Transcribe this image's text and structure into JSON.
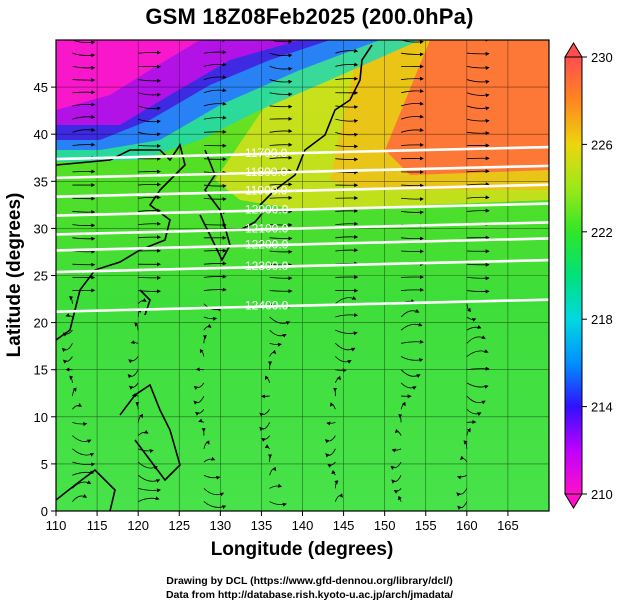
{
  "title": "GSM 18Z08Feb2025 (200.0hPa)",
  "credits": {
    "line1": "Drawing by DCL (https://www.gfd-dennou.org/library/dcl/)",
    "line2": "Data from http://database.rish.kyoto-u.ac.jp/arch/jmadata/"
  },
  "chart_data": {
    "type": "heatmap",
    "title": "GSM 18Z08Feb2025 (200.0hPa)",
    "xlabel": "Longitude (degrees)",
    "ylabel": "Latitude  (degrees)",
    "xlim": [
      110,
      170
    ],
    "ylim": [
      0,
      50
    ],
    "xticks": [
      110,
      115,
      120,
      125,
      130,
      135,
      140,
      145,
      150,
      155,
      160,
      165
    ],
    "yticks": [
      0,
      5,
      10,
      15,
      20,
      25,
      30,
      35,
      40,
      45
    ],
    "colorbar": {
      "min": 210,
      "max": 230,
      "ticks": [
        210,
        214,
        218,
        222,
        226,
        230
      ]
    },
    "contours": [
      {
        "label": "11700.0",
        "lat": 38.0
      },
      {
        "label": "11800.0",
        "lat": 36.0
      },
      {
        "label": "11900.0",
        "lat": 34.0
      },
      {
        "label": "12000.0",
        "lat": 32.0
      },
      {
        "label": "12100.0",
        "lat": 30.0
      },
      {
        "label": "12200.0",
        "lat": 28.3
      },
      {
        "label": "12300.0",
        "lat": 26.0
      },
      {
        "label": "12400.0",
        "lat": 21.8
      }
    ],
    "features": [
      "westerly jet streamlines 25-40N",
      "anticyclonic circulation near 160E 15N",
      "cyclonic vortex near 161E 47N"
    ]
  }
}
